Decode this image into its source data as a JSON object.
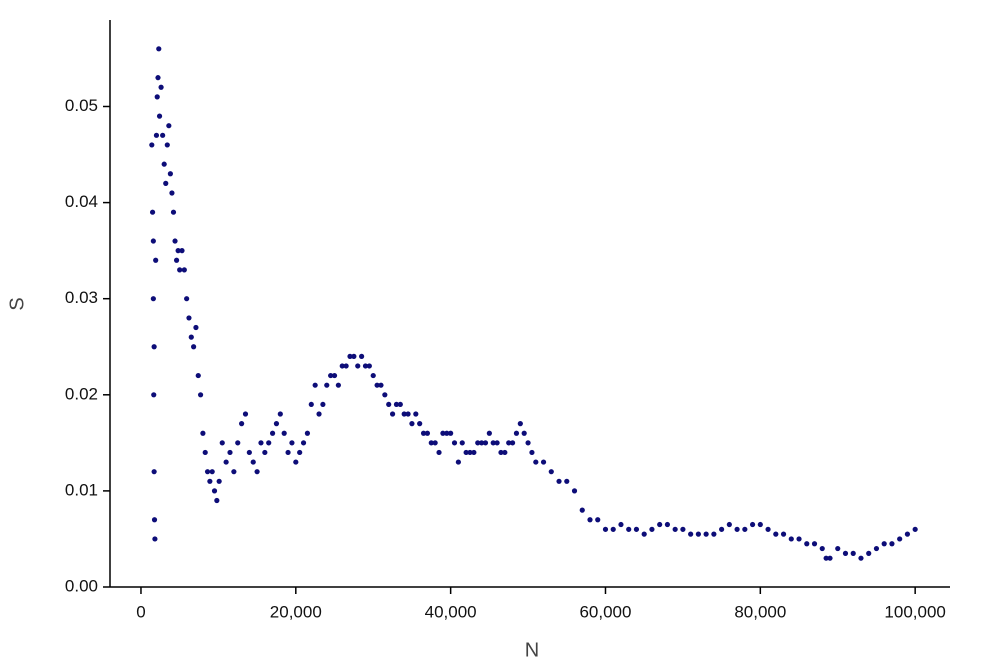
{
  "chart_data": {
    "type": "scatter",
    "xlabel": "N",
    "ylabel": "S",
    "color": "#0d0d78",
    "x": [
      1400,
      1500,
      1600,
      1650,
      1700,
      1750,
      1800,
      1700,
      1600,
      1900,
      2000,
      2100,
      2200,
      2300,
      2400,
      2600,
      2800,
      3000,
      3200,
      3400,
      3600,
      3800,
      4000,
      4200,
      4400,
      4600,
      4800,
      5000,
      5300,
      5600,
      5900,
      6200,
      6500,
      6800,
      7100,
      7400,
      7700,
      8000,
      8300,
      8600,
      8900,
      9200,
      9500,
      9800,
      10100,
      10500,
      11000,
      11500,
      12000,
      12500,
      13000,
      13500,
      14000,
      14500,
      15000,
      15500,
      16000,
      16500,
      17000,
      17500,
      18000,
      18500,
      19000,
      19500,
      20000,
      20500,
      21000,
      21500,
      22000,
      22500,
      23000,
      23500,
      24000,
      24500,
      25000,
      25500,
      26000,
      26500,
      27000,
      27500,
      28000,
      28500,
      29000,
      29500,
      30000,
      30500,
      31000,
      31500,
      32000,
      32500,
      33000,
      33500,
      34000,
      34500,
      35000,
      35500,
      36000,
      36500,
      37000,
      37500,
      38000,
      38500,
      39000,
      39500,
      40000,
      40500,
      41000,
      41500,
      42000,
      42500,
      43000,
      43500,
      44000,
      44500,
      45000,
      45500,
      46000,
      46500,
      47000,
      47500,
      48000,
      48500,
      49000,
      49500,
      50000,
      50500,
      51000,
      52000,
      53000,
      54000,
      55000,
      56000,
      57000,
      58000,
      59000,
      60000,
      61000,
      62000,
      63000,
      64000,
      65000,
      66000,
      67000,
      68000,
      69000,
      70000,
      71000,
      72000,
      73000,
      74000,
      75000,
      76000,
      77000,
      78000,
      79000,
      80000,
      81000,
      82000,
      83000,
      84000,
      85000,
      86000,
      87000,
      88000,
      88500,
      89000,
      90000,
      91000,
      92000,
      93000,
      94000,
      95000,
      96000,
      97000,
      98000,
      99000,
      100000
    ],
    "values": [
      0.046,
      0.039,
      0.03,
      0.02,
      0.012,
      0.007,
      0.005,
      0.025,
      0.036,
      0.034,
      0.047,
      0.051,
      0.053,
      0.056,
      0.049,
      0.052,
      0.047,
      0.044,
      0.042,
      0.046,
      0.048,
      0.043,
      0.041,
      0.039,
      0.036,
      0.034,
      0.035,
      0.033,
      0.035,
      0.033,
      0.03,
      0.028,
      0.026,
      0.025,
      0.027,
      0.022,
      0.02,
      0.016,
      0.014,
      0.012,
      0.011,
      0.012,
      0.01,
      0.009,
      0.011,
      0.015,
      0.013,
      0.014,
      0.012,
      0.015,
      0.017,
      0.018,
      0.014,
      0.013,
      0.012,
      0.015,
      0.014,
      0.015,
      0.016,
      0.017,
      0.018,
      0.016,
      0.014,
      0.015,
      0.013,
      0.014,
      0.015,
      0.016,
      0.019,
      0.021,
      0.018,
      0.019,
      0.021,
      0.022,
      0.022,
      0.021,
      0.023,
      0.023,
      0.024,
      0.024,
      0.023,
      0.024,
      0.023,
      0.023,
      0.022,
      0.021,
      0.021,
      0.02,
      0.019,
      0.018,
      0.019,
      0.019,
      0.018,
      0.018,
      0.017,
      0.018,
      0.017,
      0.016,
      0.016,
      0.015,
      0.015,
      0.014,
      0.016,
      0.016,
      0.016,
      0.015,
      0.013,
      0.015,
      0.014,
      0.014,
      0.014,
      0.015,
      0.015,
      0.015,
      0.016,
      0.015,
      0.015,
      0.014,
      0.014,
      0.015,
      0.015,
      0.016,
      0.017,
      0.016,
      0.015,
      0.014,
      0.013,
      0.013,
      0.012,
      0.011,
      0.011,
      0.01,
      0.008,
      0.007,
      0.007,
      0.006,
      0.006,
      0.0065,
      0.006,
      0.006,
      0.0055,
      0.006,
      0.0065,
      0.0065,
      0.006,
      0.006,
      0.0055,
      0.0055,
      0.0055,
      0.0055,
      0.006,
      0.0065,
      0.006,
      0.006,
      0.0065,
      0.0065,
      0.006,
      0.0055,
      0.0055,
      0.005,
      0.005,
      0.0045,
      0.0045,
      0.004,
      0.003,
      0.003,
      0.004,
      0.0035,
      0.0035,
      0.003,
      0.0035,
      0.004,
      0.0045,
      0.0045,
      0.005,
      0.0055,
      0.006
    ],
    "xlim": [
      -4000,
      104500
    ],
    "ylim": [
      0,
      0.059
    ],
    "xticks": [
      0,
      {
        "value": 20000,
        "label": "20,000"
      },
      {
        "value": 40000,
        "label": "40,000"
      },
      {
        "value": 60000,
        "label": "60,000"
      },
      {
        "value": 80000,
        "label": "80,000"
      },
      {
        "value": 100000,
        "label": "100,000"
      }
    ],
    "yticks": [
      {
        "value": 0,
        "label": "0.00"
      },
      0.01,
      0.02,
      0.03,
      0.04,
      0.05
    ]
  }
}
